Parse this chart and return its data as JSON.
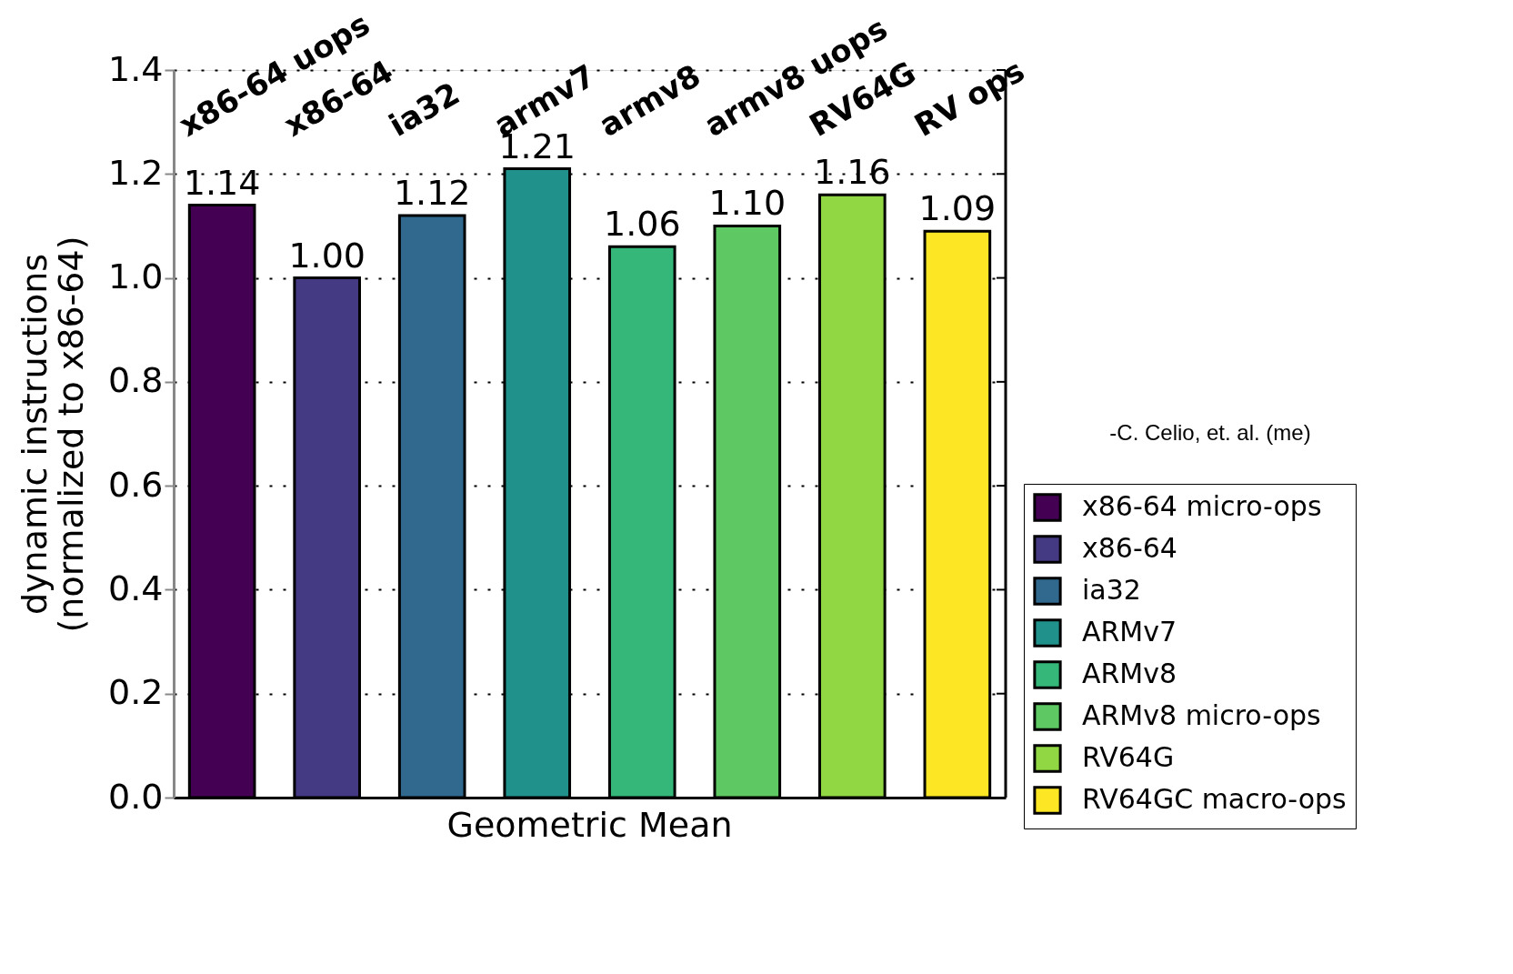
{
  "chart_data": {
    "type": "bar",
    "categories": [
      "Geometric Mean"
    ],
    "ylabel": "dynamic instructions\n(normalized to x86-64)",
    "series": [
      {
        "name": "x86-64 micro-ops",
        "color": "#440154",
        "values": [
          1.14
        ]
      },
      {
        "name": "x86-64",
        "color": "#443983",
        "values": [
          1.0
        ]
      },
      {
        "name": "ia32",
        "color": "#31688e",
        "values": [
          1.12
        ]
      },
      {
        "name": "ARMv7",
        "color": "#21918c",
        "values": [
          1.21
        ]
      },
      {
        "name": "ARMv8",
        "color": "#35b779",
        "values": [
          1.06
        ]
      },
      {
        "name": "ARMv8 micro-ops",
        "color": "#5ec962",
        "values": [
          1.1
        ]
      },
      {
        "name": "RV64G",
        "color": "#90d743",
        "values": [
          1.16
        ]
      },
      {
        "name": "RV64GC macro-ops",
        "color": "#fde725",
        "values": [
          1.09
        ]
      }
    ],
    "value_labels": [
      "1.14",
      "1.00",
      "1.12",
      "1.21",
      "1.06",
      "1.10",
      "1.16",
      "1.09"
    ],
    "annotations": [
      "x86-64 uops",
      "x86-64",
      "ia32",
      "armv7",
      "armv8",
      "armv8 uops",
      "RV64G",
      "RV ops",
      "-C. Celio, et. al. (me)"
    ],
    "ylim": [
      0,
      1.4
    ],
    "yticks": [
      {
        "value": 0,
        "label": "0.0"
      },
      {
        "value": 0.2,
        "label": "0.2"
      },
      {
        "value": 0.4,
        "label": "0.4"
      },
      {
        "value": 0.6,
        "label": "0.6"
      },
      {
        "value": 0.8,
        "label": "0.8"
      },
      {
        "value": 1.0,
        "label": "1.0"
      },
      {
        "value": 1.2,
        "label": "1.2"
      },
      {
        "value": 1.4,
        "label": "1.4"
      }
    ],
    "grid": "y",
    "legend": "bottom right"
  }
}
